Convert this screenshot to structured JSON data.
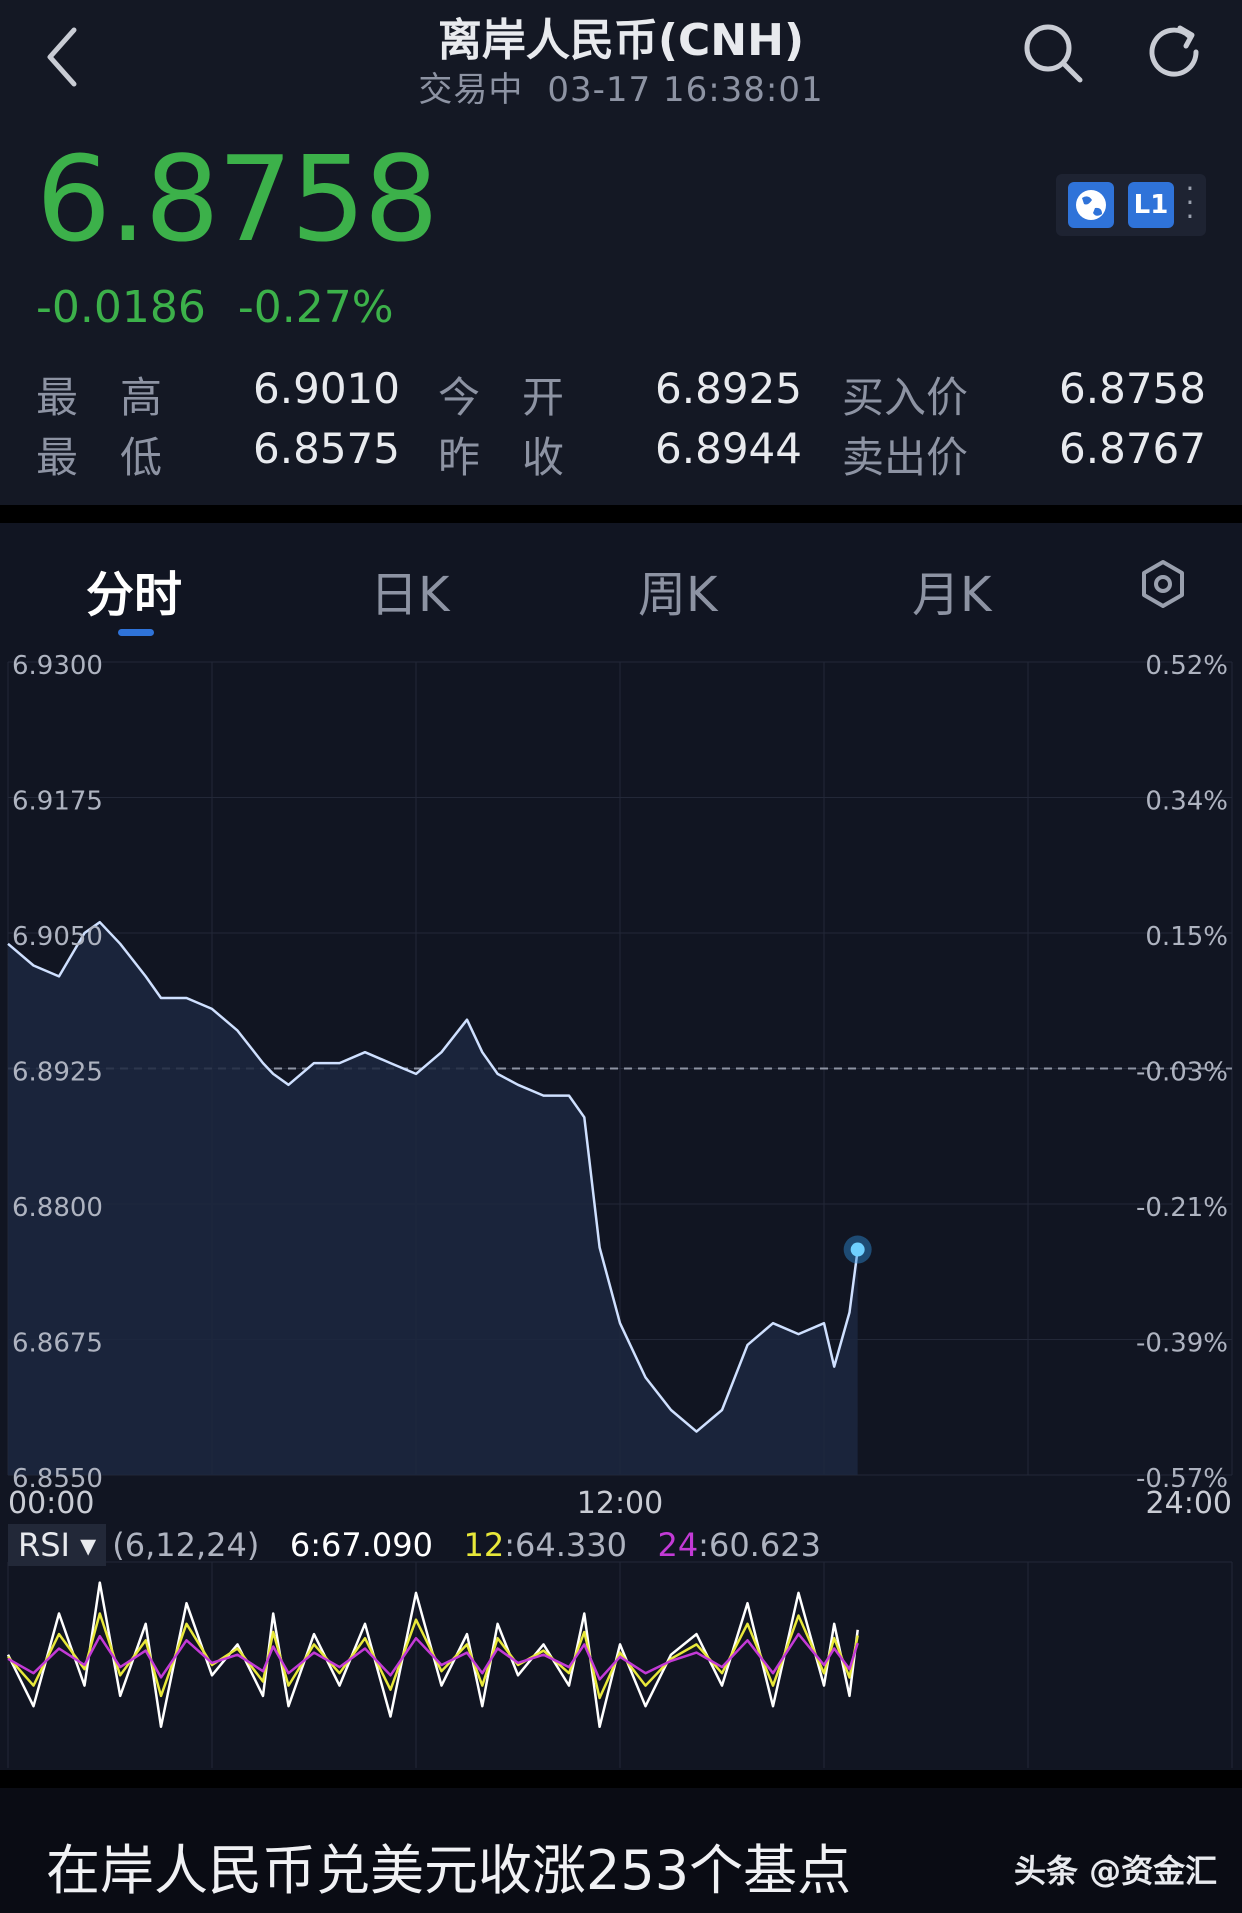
{
  "header": {
    "title": "离岸人民币(CNH)",
    "status": "交易中",
    "datetime": "03-17 16:38:01",
    "price": "6.8758",
    "change": "-0.0186",
    "change_pct": "-0.27%",
    "badge_l1": "L1",
    "price_color": "#3cb14a"
  },
  "stats": {
    "high_label": "最　高",
    "high": "6.9010",
    "low_label": "最　低",
    "low": "6.8575",
    "open_label": "今　开",
    "open": "6.8925",
    "prev_label": "昨　收",
    "prev": "6.8944",
    "bid_label": "买入价",
    "bid": "6.8758",
    "ask_label": "卖出价",
    "ask": "6.8767"
  },
  "tabs": [
    "分时",
    "日K",
    "周K",
    "月K"
  ],
  "icons": [
    "back-icon",
    "search-icon",
    "refresh-icon",
    "globe-icon",
    "more-icon",
    "settings-icon"
  ],
  "rsi": {
    "label": "RSI",
    "params": "(6,12,24)",
    "r6_label": "6",
    "r6": "67.090",
    "r12_label": "12",
    "r12": "64.330",
    "r24_label": "24",
    "r24": "60.623",
    "colors": {
      "r6": "#ffffff",
      "r12": "#e8e83a",
      "r24": "#c33ad6"
    }
  },
  "footer": {
    "caption": "在岸人民币兑美元收涨253个基点",
    "source": "头条 @资金汇"
  },
  "chart_data": {
    "type": "line",
    "y_left_ticks": [
      "6.9300",
      "6.9175",
      "6.9050",
      "6.8925",
      "6.8800",
      "6.8675",
      "6.8550"
    ],
    "y_right_ticks": [
      "0.52%",
      "0.34%",
      "0.15%",
      "-0.03%",
      "-0.21%",
      "-0.39%",
      "-0.57%"
    ],
    "x_ticks": [
      "00:00",
      "12:00",
      "24:00"
    ],
    "ylim": [
      6.855,
      6.93
    ],
    "xlim_hours": [
      0,
      24
    ],
    "reference_line": 6.8925,
    "x_hours": [
      0,
      0.5,
      1,
      1.5,
      1.8,
      2.2,
      2.7,
      3,
      3.5,
      4,
      4.5,
      5,
      5.2,
      5.5,
      6,
      6.5,
      7,
      7.5,
      8,
      8.5,
      9,
      9.3,
      9.6,
      10,
      10.5,
      11,
      11.3,
      11.6,
      12,
      12.5,
      13,
      13.5,
      14,
      14.5,
      15,
      15.5,
      16,
      16.2,
      16.5,
      16.66
    ],
    "price": [
      6.904,
      6.902,
      6.901,
      6.905,
      6.906,
      6.904,
      6.901,
      6.899,
      6.899,
      6.898,
      6.896,
      6.893,
      6.892,
      6.891,
      6.893,
      6.893,
      6.894,
      6.893,
      6.892,
      6.894,
      6.897,
      6.894,
      6.892,
      6.891,
      6.89,
      6.89,
      6.888,
      6.876,
      6.869,
      6.864,
      6.861,
      6.859,
      6.861,
      6.867,
      6.869,
      6.868,
      6.869,
      6.865,
      6.87,
      6.8758
    ],
    "rsi6": [
      55,
      30,
      75,
      40,
      90,
      35,
      70,
      20,
      80,
      45,
      60,
      35,
      75,
      30,
      65,
      40,
      70,
      25,
      85,
      40,
      65,
      30,
      70,
      45,
      60,
      40,
      75,
      20,
      60,
      30,
      55,
      65,
      40,
      80,
      30,
      85,
      40,
      70,
      35,
      67.09
    ],
    "rsi12": [
      54,
      40,
      65,
      48,
      75,
      45,
      62,
      35,
      70,
      50,
      58,
      42,
      66,
      40,
      60,
      46,
      63,
      38,
      72,
      47,
      60,
      40,
      63,
      50,
      57,
      46,
      66,
      34,
      56,
      40,
      53,
      60,
      46,
      70,
      40,
      74,
      46,
      63,
      44,
      64.33
    ],
    "rsi24": [
      53,
      46,
      58,
      50,
      64,
      49,
      57,
      44,
      62,
      51,
      55,
      47,
      59,
      46,
      56,
      49,
      58,
      45,
      63,
      50,
      56,
      46,
      58,
      51,
      55,
      49,
      60,
      43,
      54,
      46,
      52,
      56,
      49,
      62,
      46,
      65,
      50,
      58,
      48,
      60.623
    ]
  }
}
